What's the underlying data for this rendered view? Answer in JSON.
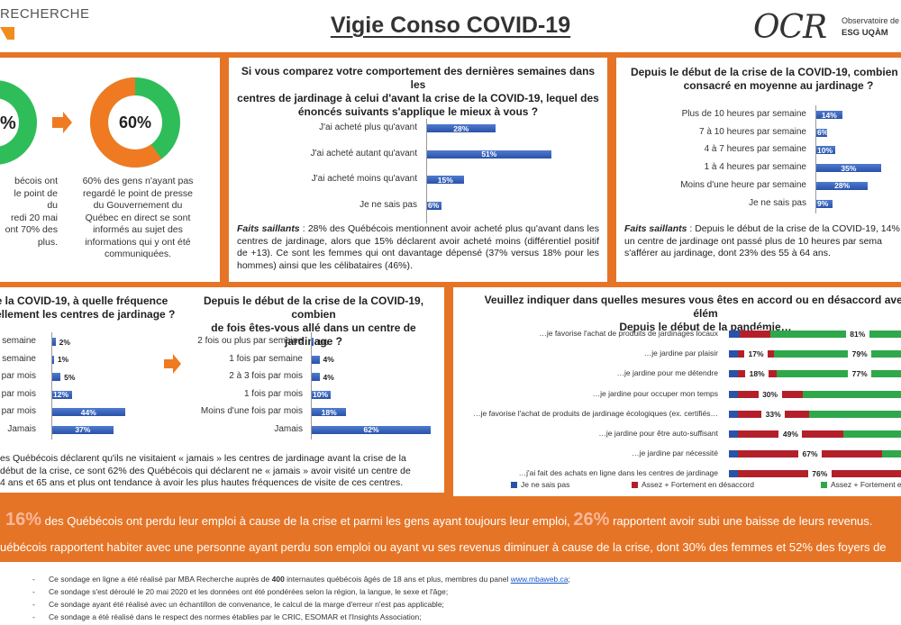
{
  "header": {
    "brand_left": "RECHERCHE",
    "title": "Vigie Conso COVID-19",
    "logo": "OCR",
    "logo_sub1": "Observatoire de la Co",
    "logo_sub2": "ESG UQÀM"
  },
  "panel1": {
    "donut_left_label": "%",
    "donut_right_label": "60%",
    "left_text": [
      "bécois ont",
      "le point de",
      "du",
      "redi 20 mai",
      "ont 70% des",
      "plus."
    ],
    "right_text": [
      "60% des gens n'ayant pas",
      "regardé le point de presse",
      "du Gouvernement du",
      "Québec en direct se sont",
      "informés au sujet des",
      "informations qui y ont été",
      "communiquées."
    ],
    "colors": {
      "green": "#2ebd59",
      "orange": "#f07a22"
    },
    "right_value": 60
  },
  "panel2": {
    "title": [
      "Si vous comparez votre comportement des dernières semaines dans les",
      "centres de jardinage à celui d'avant la crise de la COVID-19, lequel des",
      "énoncés suivants s'applique le mieux à vous ?"
    ],
    "faits_label": "Faits saillants",
    "faits": " : 28% des Québécois mentionnent avoir acheté plus qu'avant dans les centres de jardinage, alors que 15% déclarent avoir acheté moins (différentiel positif de +13). Ce sont les femmes qui ont davantage dépensé (37% versus 18% pour les hommes) ainsi que les célibataires (46%)."
  },
  "panel3": {
    "title": [
      "Depuis le début de la crise de la COVID-19, combien de te",
      "consacré en moyenne au jardinage ?"
    ],
    "faits_label": "Faits saillants",
    "faits_lines": [
      " : Depuis le début de la crise de la COVID-19, 14% d",
      "un centre de jardinage ont passé plus de 10 heures par sema",
      "s'afférer au jardinage, dont 23% des 55 à 64 ans."
    ]
  },
  "panel4": {
    "title_left": [
      "e la COVID-19, à quelle fréquence",
      "uellement les centres de jardinage ?"
    ],
    "title_right": [
      "Depuis le début de la crise de la COVID-19, combien",
      "de fois êtes-vous allé dans un centre de jardinage ?"
    ],
    "faits_lines": [
      "es Québécois déclarent qu'ils ne visitaient « jamais » les centres de jardinage avant la crise de la",
      " début de la crise, ce sont 62% des Québécois qui déclarent ne « jamais » avoir visité un centre de",
      "4 ans et 65 ans et plus ont tendance à avoir les plus hautes fréquences de visite de ces centres."
    ]
  },
  "panel5": {
    "title": [
      "Veuillez indiquer dans quelles mesures vous êtes en accord ou en désaccord avec les élém",
      "Depuis le début de la pandémie…"
    ],
    "legend": [
      "Je ne sais pas",
      "Assez + Fortement en désaccord",
      "Assez + Fortement e"
    ],
    "colors": {
      "nsp": "#2a52a8",
      "desaccord": "#b3202a",
      "accord": "#2ea84a"
    }
  },
  "bottom": {
    "line1_pre": "16%",
    "line1_mid": " des Québécois ont perdu leur emploi à cause de la crise et parmi les gens ayant toujours leur emploi, ",
    "line1_big": "26%",
    "line1_end": " rapportent avoir subi une baisse de leurs revenus.",
    "line2": "uébécois rapportent habiter avec une personne ayant perdu son emploi ou ayant vu ses revenus diminuer à cause de la crise, dont 30% des femmes et 52% des foyers de"
  },
  "notes": {
    "dash": "-",
    "n1_pre": "Ce sondage en ligne a été réalisé par MBA Recherche auprès de ",
    "n1_bold": "400",
    "n1_post": " internautes québécois âgés de 18 ans et plus, membres du panel ",
    "n1_link": "www.mbaweb.ca",
    "n1_end": ";",
    "n2": "Ce sondage s'est déroulé le 20 mai 2020 et les données ont été pondérées selon la région, la langue, le sexe et l'âge;",
    "n3": "Ce sondage ayant été réalisé avec un échantillon de convenance, le calcul de la marge d'erreur n'est pas applicable;",
    "n4": "Ce sondage a été réalisé dans le respect des normes établies par le CRIC, ESOMAR et l'Insights Association;"
  },
  "chart_data": [
    {
      "type": "bar",
      "orientation": "horizontal",
      "categories": [
        "J'ai acheté plus qu'avant",
        "J'ai acheté autant qu'avant",
        "J'ai acheté moins qu'avant",
        "Je ne sais pas"
      ],
      "values": [
        28,
        51,
        15,
        6
      ],
      "labels": [
        "28%",
        "51%",
        "15%",
        "6%"
      ]
    },
    {
      "type": "bar",
      "orientation": "horizontal",
      "categories": [
        "Plus de 10 heures par semaine",
        "7 à 10 heures par semaine",
        "4 à 7 heures par semaine",
        "1 à 4 heures par semaine",
        "Moins d'une heure par semaine",
        "Je ne sais pas"
      ],
      "values": [
        14,
        6,
        10,
        35,
        28,
        9
      ],
      "labels": [
        "14%",
        "6%",
        "10%",
        "35%",
        "28%",
        "9%"
      ]
    },
    {
      "type": "bar",
      "orientation": "horizontal",
      "categories": [
        "semaine",
        "semaine",
        "par mois",
        "par mois",
        "par mois",
        "Jamais"
      ],
      "values": [
        2,
        1,
        5,
        12,
        44,
        37
      ],
      "labels": [
        "2%",
        "1%",
        "5%",
        "12%",
        "44%",
        "37%"
      ]
    },
    {
      "type": "bar",
      "orientation": "horizontal",
      "categories": [
        "2 fois ou plus par semaine",
        "1 fois par semaine",
        "2 à 3 fois par mois",
        "1 fois par mois",
        "Moins d'une fois par mois",
        "Jamais"
      ],
      "values": [
        1,
        4,
        4,
        10,
        18,
        62
      ],
      "labels": [
        "1%",
        "4%",
        "4%",
        "10%",
        "18%",
        "62%"
      ]
    },
    {
      "type": "bar",
      "orientation": "horizontal",
      "stacked": true,
      "categories": [
        "…je favorise l'achat de produits de jardinages locaux",
        "…je jardine par plaisir",
        "…je jardine pour me détendre",
        "…je jardine pour occuper mon temps",
        "…je favorise l'achat de produits de jardinage écologiques (ex. certifiés…",
        "…je jardine pour être auto-suffisant",
        "…je jardine par nécessité",
        "…j'ai fait des achats en ligne dans les centres de jardinage"
      ],
      "series": [
        {
          "name": "Je ne sais pas",
          "values": [
            5,
            4,
            4,
            4,
            4,
            4,
            4,
            4
          ]
        },
        {
          "name": "Assez + Fortement en désaccord",
          "values": [
            14,
            17,
            18,
            30,
            33,
            49,
            67,
            76
          ]
        },
        {
          "name": "Assez + Fortement e",
          "values": [
            81,
            79,
            77,
            66,
            63,
            47,
            29,
            20
          ]
        }
      ],
      "value_labels": [
        [
          "5%",
          "",
          "81%"
        ],
        [
          "",
          "17%",
          "79%"
        ],
        [
          "",
          "18%",
          "77%"
        ],
        [
          "",
          "30%",
          ""
        ],
        [
          "",
          "33%",
          ""
        ],
        [
          "",
          "49%",
          ""
        ],
        [
          "",
          "67%",
          ""
        ],
        [
          "",
          "76%",
          ""
        ]
      ]
    }
  ]
}
